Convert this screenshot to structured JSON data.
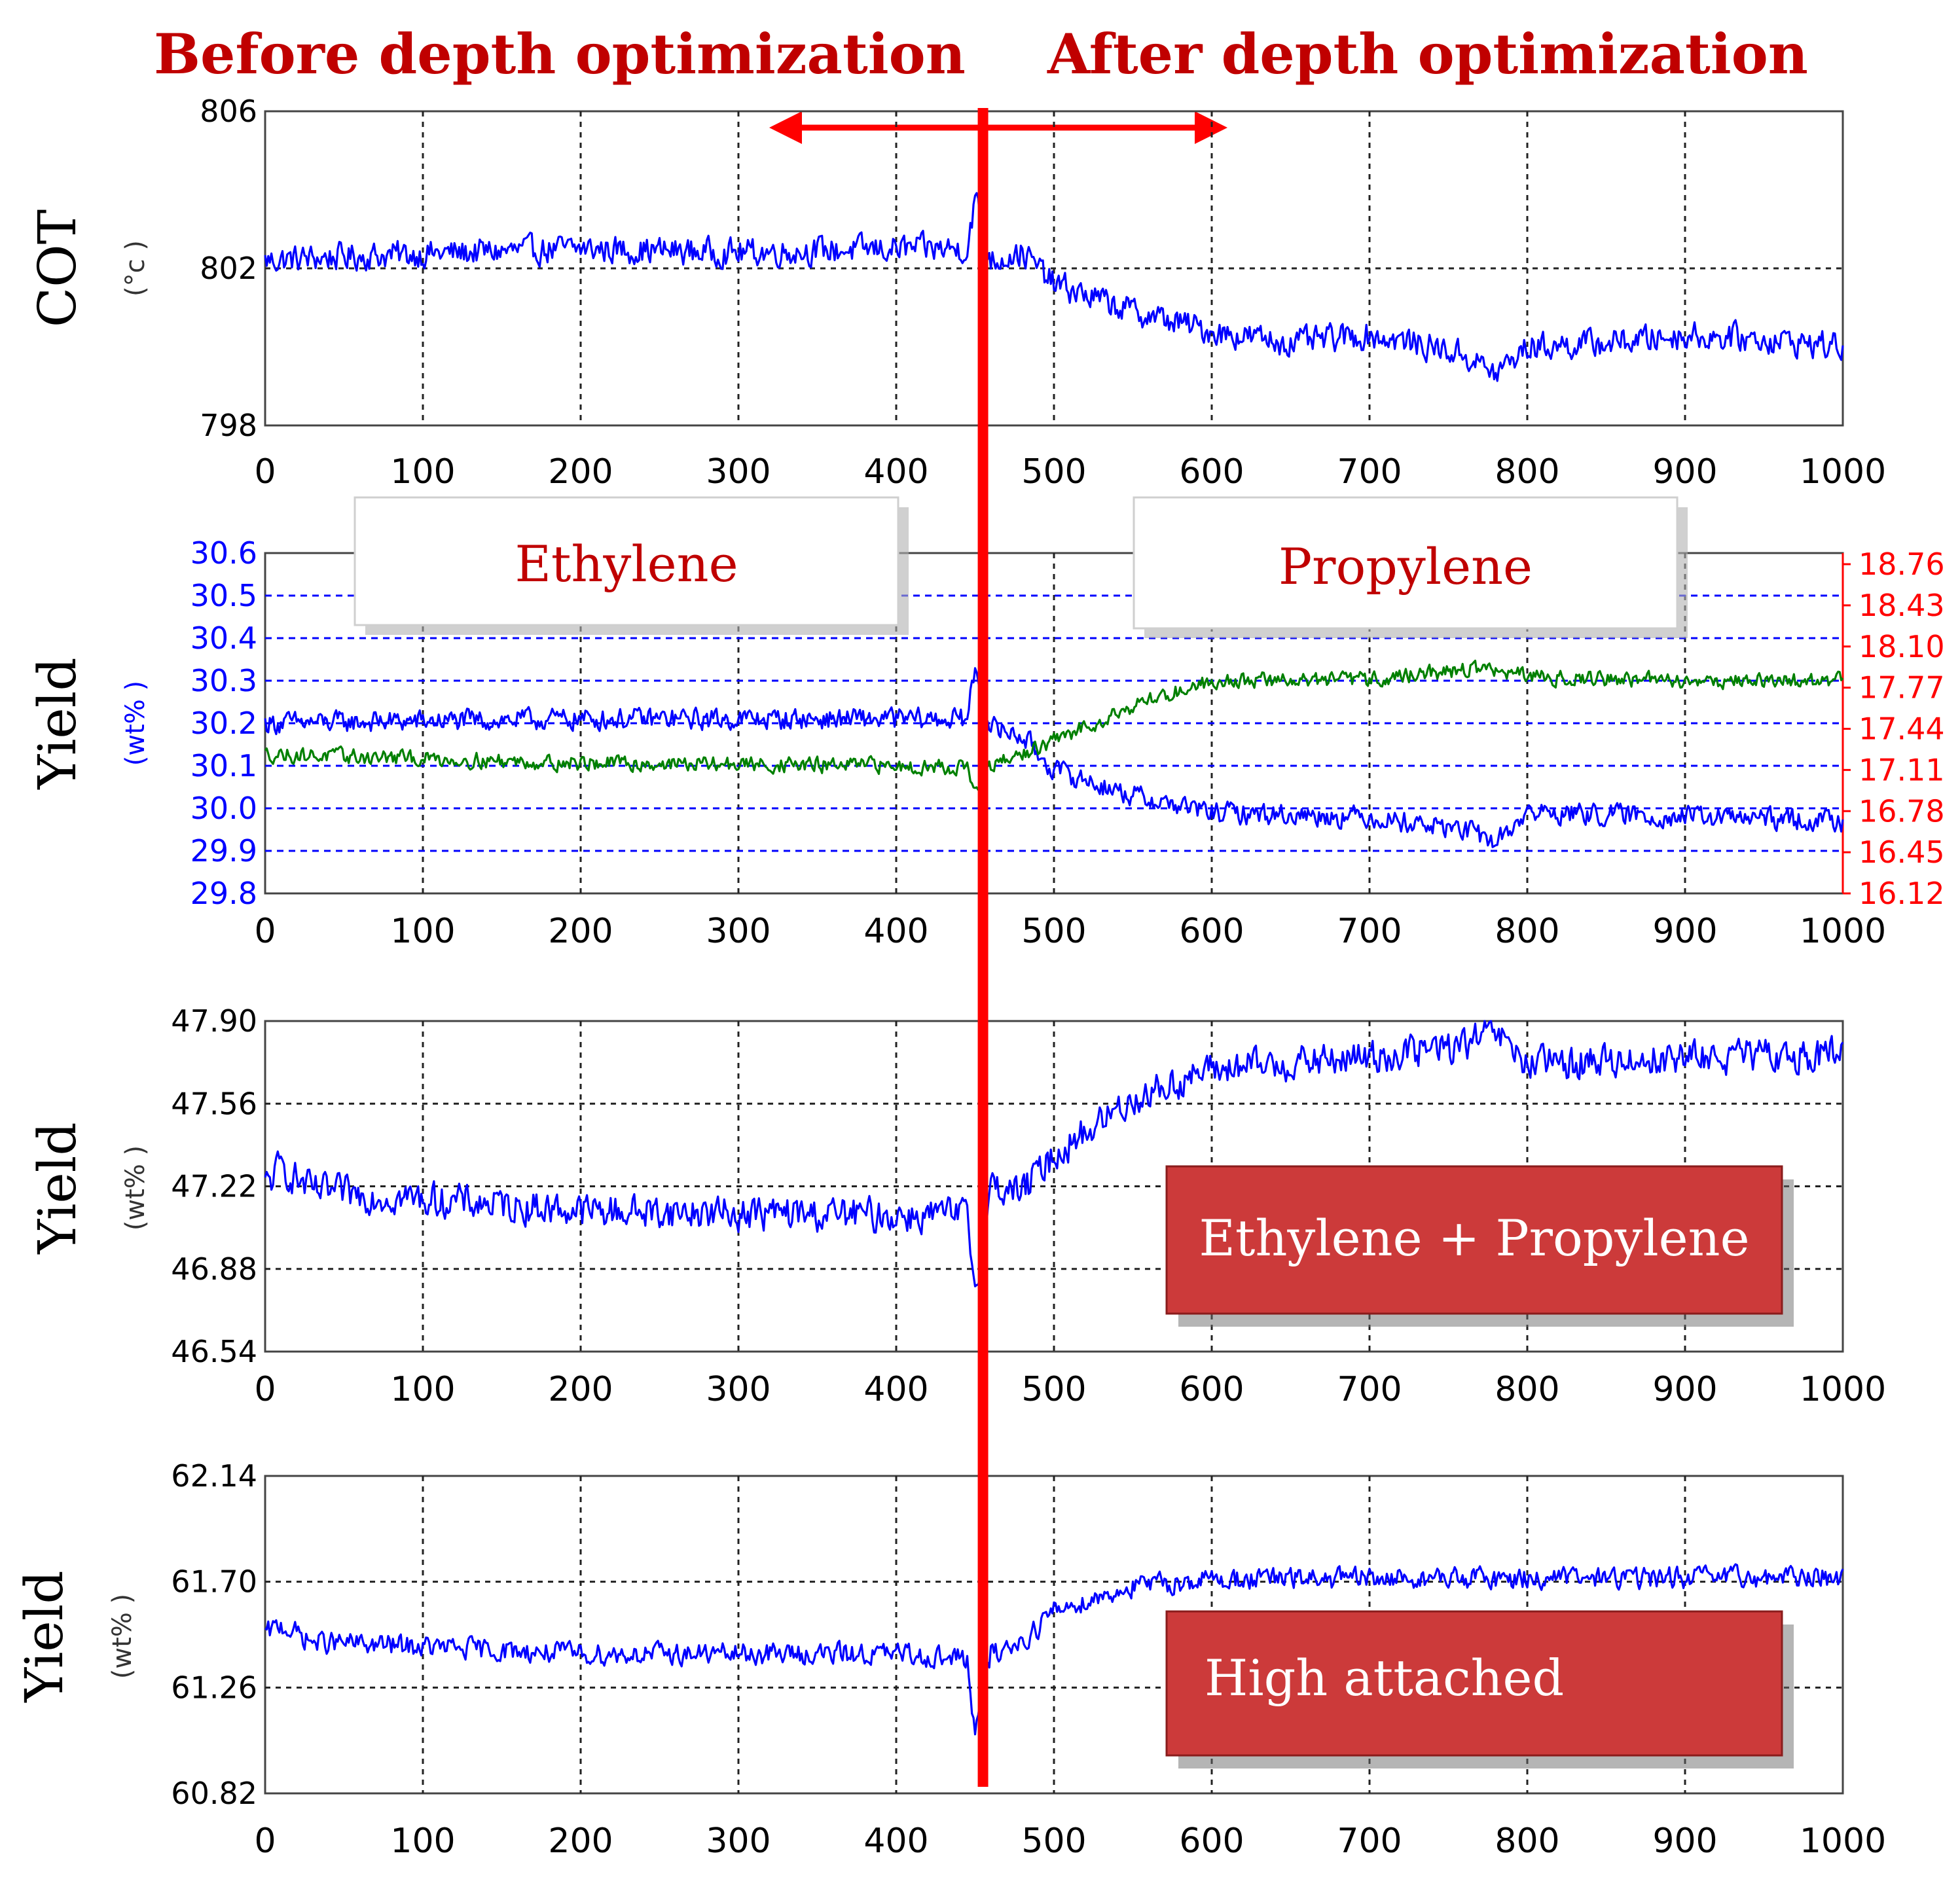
{
  "header": {
    "before": "Before depth optimization",
    "after": "After depth optimization",
    "color": "#c00000"
  },
  "divider": {
    "x_value": 455,
    "color": "#ff0000"
  },
  "colors": {
    "blue": "#0000ff",
    "green": "#008000",
    "red": "#ff0000",
    "dark_red": "#c00000"
  },
  "chart_data": [
    {
      "id": "cot",
      "type": "line",
      "ylabel": "COT",
      "yunit": "(°c )",
      "x_range": [
        0,
        1000
      ],
      "xticks": [
        "0",
        "100",
        "200",
        "300",
        "400",
        "500",
        "600",
        "700",
        "800",
        "900",
        "1000"
      ],
      "yticks": [
        "806",
        "802",
        "798"
      ],
      "ylim": [
        798,
        806
      ],
      "series": [
        {
          "name": "COT",
          "color": "#0000ff",
          "trend": [
            [
              0,
              802.2
            ],
            [
              50,
              802.3
            ],
            [
              200,
              802.5
            ],
            [
              300,
              802.4
            ],
            [
              400,
              802.5
            ],
            [
              445,
              802.5
            ],
            [
              450,
              803.8
            ],
            [
              460,
              802.2
            ],
            [
              480,
              802.4
            ],
            [
              500,
              801.6
            ],
            [
              550,
              800.9
            ],
            [
              600,
              800.4
            ],
            [
              650,
              800.1
            ],
            [
              700,
              800.3
            ],
            [
              740,
              800.0
            ],
            [
              760,
              799.8
            ],
            [
              780,
              799.3
            ],
            [
              800,
              800.0
            ],
            [
              850,
              800.1
            ],
            [
              900,
              800.3
            ],
            [
              950,
              800.2
            ],
            [
              1000,
              800.0
            ]
          ],
          "noise": 0.35
        }
      ]
    },
    {
      "id": "ethylene-propylene",
      "type": "line",
      "ylabel": "Yield",
      "yunit": "(wt% )",
      "x_range": [
        0,
        1000
      ],
      "xticks": [
        "0",
        "100",
        "200",
        "300",
        "400",
        "500",
        "600",
        "700",
        "800",
        "900",
        "1000"
      ],
      "yticks_left": [
        "30.6",
        "30.5",
        "30.4",
        "30.3",
        "30.2",
        "30.1",
        "30.0",
        "29.9",
        "29.8"
      ],
      "ylim_left": [
        29.8,
        30.6
      ],
      "yticks_right": [
        "18.76",
        "18.43",
        "18.10",
        "17.77",
        "17.44",
        "17.11",
        "16.78",
        "16.45",
        "16.12"
      ],
      "ylim_right": [
        16.12,
        18.76
      ],
      "labels": [
        "Ethylene",
        "Propylene"
      ],
      "series": [
        {
          "name": "Ethylene",
          "axis": "left",
          "color": "#0000ff",
          "trend": [
            [
              0,
              30.2
            ],
            [
              200,
              30.21
            ],
            [
              400,
              30.21
            ],
            [
              445,
              30.21
            ],
            [
              450,
              30.33
            ],
            [
              460,
              30.19
            ],
            [
              480,
              30.17
            ],
            [
              500,
              30.09
            ],
            [
              550,
              30.03
            ],
            [
              600,
              29.99
            ],
            [
              700,
              29.98
            ],
            [
              760,
              29.95
            ],
            [
              780,
              29.92
            ],
            [
              800,
              29.99
            ],
            [
              1000,
              29.97
            ]
          ],
          "noise": 0.025
        },
        {
          "name": "Propylene",
          "axis": "right",
          "color": "#008000",
          "trend": [
            [
              0,
              17.2
            ],
            [
              200,
              17.13
            ],
            [
              400,
              17.11
            ],
            [
              445,
              17.1
            ],
            [
              450,
              16.9
            ],
            [
              460,
              17.1
            ],
            [
              500,
              17.3
            ],
            [
              550,
              17.58
            ],
            [
              600,
              17.77
            ],
            [
              700,
              17.78
            ],
            [
              770,
              17.87
            ],
            [
              800,
              17.8
            ],
            [
              900,
              17.77
            ],
            [
              1000,
              17.77
            ]
          ],
          "noise": 0.06
        }
      ]
    },
    {
      "id": "ethylene-plus-propylene",
      "type": "line",
      "ylabel": "Yield",
      "yunit": "(wt% )",
      "x_range": [
        0,
        1000
      ],
      "xticks": [
        "0",
        "100",
        "200",
        "300",
        "400",
        "500",
        "600",
        "700",
        "800",
        "900",
        "1000"
      ],
      "yticks": [
        "47.90",
        "47.56",
        "47.22",
        "46.88",
        "46.54"
      ],
      "ylim": [
        46.54,
        47.9
      ],
      "label": "Ethylene + Propylene",
      "series": [
        {
          "name": "Ethylene + Propylene",
          "color": "#0000ff",
          "trend": [
            [
              0,
              47.22
            ],
            [
              10,
              47.3
            ],
            [
              30,
              47.2
            ],
            [
              200,
              47.12
            ],
            [
              400,
              47.1
            ],
            [
              445,
              47.1
            ],
            [
              450,
              46.8
            ],
            [
              460,
              47.22
            ],
            [
              480,
              47.2
            ],
            [
              500,
              47.35
            ],
            [
              550,
              47.58
            ],
            [
              600,
              47.7
            ],
            [
              700,
              47.75
            ],
            [
              760,
              47.8
            ],
            [
              780,
              47.85
            ],
            [
              800,
              47.72
            ],
            [
              900,
              47.75
            ],
            [
              1000,
              47.76
            ]
          ],
          "noise": 0.07
        }
      ]
    },
    {
      "id": "high-attached",
      "type": "line",
      "ylabel": "Yield",
      "yunit": "(wt% )",
      "x_range": [
        0,
        1000
      ],
      "xticks": [
        "0",
        "100",
        "200",
        "300",
        "400",
        "500",
        "600",
        "700",
        "800",
        "900",
        "1000"
      ],
      "yticks": [
        "62.14",
        "61.70",
        "61.26",
        "60.82"
      ],
      "ylim": [
        60.82,
        62.14
      ],
      "label": "High attached",
      "series": [
        {
          "name": "High attached",
          "color": "#0000ff",
          "trend": [
            [
              0,
              61.48
            ],
            [
              10,
              61.52
            ],
            [
              30,
              61.45
            ],
            [
              200,
              61.4
            ],
            [
              400,
              61.4
            ],
            [
              445,
              61.38
            ],
            [
              450,
              61.05
            ],
            [
              460,
              61.4
            ],
            [
              480,
              61.45
            ],
            [
              500,
              61.58
            ],
            [
              550,
              61.68
            ],
            [
              600,
              61.71
            ],
            [
              1000,
              61.72
            ]
          ],
          "noise": 0.045
        }
      ]
    }
  ]
}
